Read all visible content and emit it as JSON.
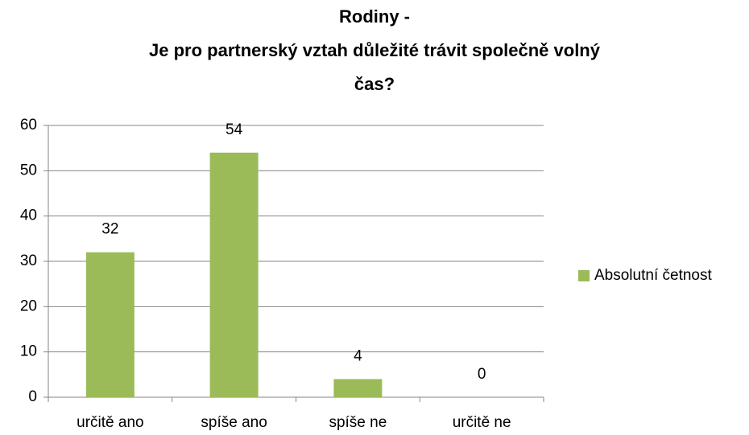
{
  "chart_data": {
    "type": "bar",
    "title": [
      "Rodiny -",
      "Je pro partnerský vztah důležité trávit společně volný",
      "čas?"
    ],
    "categories": [
      "určitě ano",
      "spíše ano",
      "spíše ne",
      "určitě ne"
    ],
    "series": [
      {
        "name": "Absolutní četnost",
        "color": "#9bbb59",
        "values": [
          32,
          54,
          4,
          0
        ]
      }
    ],
    "ylim": [
      0,
      60
    ],
    "yticks": [
      0,
      10,
      20,
      30,
      40,
      50,
      60
    ],
    "grid": true,
    "legend": "right"
  }
}
